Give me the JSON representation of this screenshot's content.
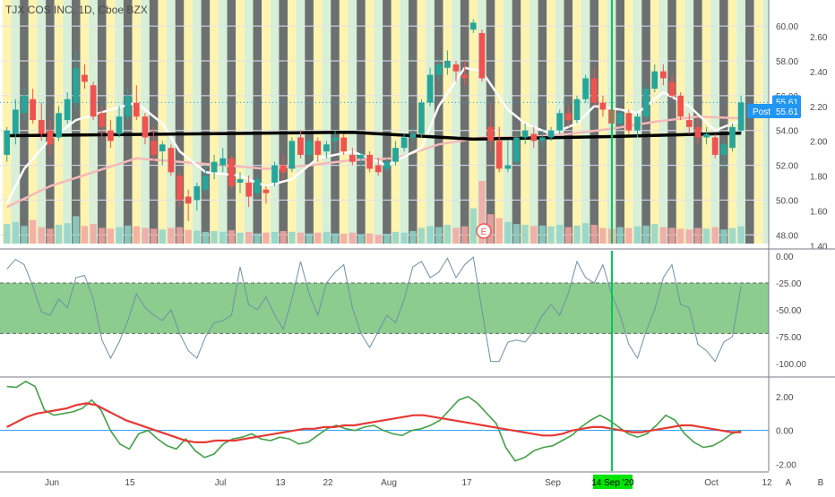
{
  "header": {
    "title": "TJX COS INC, 1D, Cboe BZX"
  },
  "price_tags": {
    "current": "55.61",
    "post_label": "Post",
    "post": "55.61"
  },
  "colors": {
    "up": "#26a69a",
    "down": "#ef5350",
    "bg_yellow": "#fff3b0",
    "bg_green": "#d7f0d7",
    "bg_gray": "#5d6062",
    "ma_long": "#000000",
    "ma_short": "#ffffff",
    "ma_pink": "#f4b9b9",
    "osc_fill": "#66bb6a",
    "osc_line": "#6f8fa6",
    "macd_fast": "#43a047",
    "macd_slow": "#e53935",
    "crosshair": "#00c853",
    "tag": "#2196f3",
    "date_tag_bg": "#00e600"
  },
  "x_axis": {
    "labels": [
      "Jun",
      "15",
      "Jul",
      "13",
      "22",
      "Aug",
      "17",
      "Sep",
      "Oct",
      "12"
    ],
    "highlight": "14 Sep '20"
  },
  "corner_buttons": {
    "a": "A",
    "b": "B"
  },
  "earnings_marker": "E",
  "chart_data": [
    {
      "type": "candlestick",
      "title": "TJX COS INC, 1D, Cboe BZX",
      "ylim_price": [
        47.5,
        61.5
      ],
      "price_ticks": [
        "60.00",
        "58.00",
        "56.00",
        "54.00",
        "52.00",
        "50.00",
        "48.00"
      ],
      "ratio_ticks": [
        "2.60",
        "2.40",
        "2.20",
        "2.00",
        "1.80",
        "1.60",
        "1.40"
      ],
      "candles": [
        {
          "o": 52.6,
          "h": 54.2,
          "l": 52.2,
          "c": 54.0
        },
        {
          "o": 53.8,
          "h": 55.8,
          "l": 53.2,
          "c": 55.2
        },
        {
          "o": 55.0,
          "h": 56.5,
          "l": 54.6,
          "c": 56.0
        },
        {
          "o": 55.8,
          "h": 56.4,
          "l": 54.4,
          "c": 54.6
        },
        {
          "o": 54.6,
          "h": 55.6,
          "l": 53.4,
          "c": 53.8
        },
        {
          "o": 54.0,
          "h": 54.6,
          "l": 52.6,
          "c": 53.2
        },
        {
          "o": 53.6,
          "h": 55.4,
          "l": 53.4,
          "c": 55.0
        },
        {
          "o": 54.6,
          "h": 56.2,
          "l": 54.4,
          "c": 55.8
        },
        {
          "o": 55.6,
          "h": 58.6,
          "l": 55.2,
          "c": 57.6
        },
        {
          "o": 57.2,
          "h": 57.8,
          "l": 56.4,
          "c": 56.8
        },
        {
          "o": 56.6,
          "h": 56.8,
          "l": 54.6,
          "c": 54.8
        },
        {
          "o": 55.0,
          "h": 55.4,
          "l": 53.6,
          "c": 54.2
        },
        {
          "o": 54.0,
          "h": 54.6,
          "l": 53.0,
          "c": 53.4
        },
        {
          "o": 53.8,
          "h": 55.4,
          "l": 53.6,
          "c": 54.8
        },
        {
          "o": 54.8,
          "h": 56.4,
          "l": 54.6,
          "c": 56.0
        },
        {
          "o": 55.6,
          "h": 56.6,
          "l": 54.6,
          "c": 54.8
        },
        {
          "o": 54.8,
          "h": 55.0,
          "l": 53.2,
          "c": 53.6
        },
        {
          "o": 53.4,
          "h": 54.2,
          "l": 52.2,
          "c": 52.6
        },
        {
          "o": 52.8,
          "h": 53.4,
          "l": 52.0,
          "c": 53.2
        },
        {
          "o": 53.0,
          "h": 53.2,
          "l": 51.4,
          "c": 51.6
        },
        {
          "o": 51.4,
          "h": 51.6,
          "l": 49.6,
          "c": 50.0
        },
        {
          "o": 50.2,
          "h": 50.6,
          "l": 48.8,
          "c": 49.8
        },
        {
          "o": 50.0,
          "h": 51.0,
          "l": 49.4,
          "c": 50.8
        },
        {
          "o": 50.6,
          "h": 52.0,
          "l": 50.4,
          "c": 51.4
        },
        {
          "o": 51.6,
          "h": 52.6,
          "l": 51.2,
          "c": 52.2
        },
        {
          "o": 52.0,
          "h": 53.0,
          "l": 51.6,
          "c": 52.4
        },
        {
          "o": 52.4,
          "h": 52.6,
          "l": 50.6,
          "c": 50.8
        },
        {
          "o": 51.0,
          "h": 51.6,
          "l": 50.4,
          "c": 51.2
        },
        {
          "o": 51.0,
          "h": 51.4,
          "l": 49.6,
          "c": 50.2
        },
        {
          "o": 50.4,
          "h": 51.4,
          "l": 50.2,
          "c": 51.2
        },
        {
          "o": 50.6,
          "h": 50.8,
          "l": 49.8,
          "c": 50.4
        },
        {
          "o": 51.0,
          "h": 52.2,
          "l": 50.8,
          "c": 52.0
        },
        {
          "o": 52.0,
          "h": 52.6,
          "l": 51.2,
          "c": 51.6
        },
        {
          "o": 51.8,
          "h": 53.6,
          "l": 51.6,
          "c": 53.4
        },
        {
          "o": 53.6,
          "h": 54.0,
          "l": 52.4,
          "c": 52.6
        },
        {
          "o": 52.6,
          "h": 53.6,
          "l": 52.2,
          "c": 53.4
        },
        {
          "o": 53.4,
          "h": 53.6,
          "l": 52.2,
          "c": 52.6
        },
        {
          "o": 52.8,
          "h": 53.4,
          "l": 52.4,
          "c": 53.2
        },
        {
          "o": 53.4,
          "h": 54.0,
          "l": 52.8,
          "c": 53.6
        },
        {
          "o": 53.6,
          "h": 53.8,
          "l": 52.6,
          "c": 52.8
        },
        {
          "o": 52.6,
          "h": 53.0,
          "l": 52.0,
          "c": 52.2
        },
        {
          "o": 52.4,
          "h": 52.8,
          "l": 51.8,
          "c": 52.6
        },
        {
          "o": 52.6,
          "h": 52.8,
          "l": 51.6,
          "c": 51.8
        },
        {
          "o": 52.0,
          "h": 52.4,
          "l": 51.4,
          "c": 51.6
        },
        {
          "o": 51.8,
          "h": 52.4,
          "l": 51.6,
          "c": 52.2
        },
        {
          "o": 52.2,
          "h": 53.4,
          "l": 52.0,
          "c": 53.0
        },
        {
          "o": 53.0,
          "h": 53.8,
          "l": 52.8,
          "c": 53.6
        },
        {
          "o": 53.6,
          "h": 54.2,
          "l": 53.4,
          "c": 53.8
        },
        {
          "o": 53.8,
          "h": 55.8,
          "l": 53.6,
          "c": 55.6
        },
        {
          "o": 55.6,
          "h": 57.6,
          "l": 55.4,
          "c": 57.2
        },
        {
          "o": 57.2,
          "h": 58.2,
          "l": 56.8,
          "c": 57.8
        },
        {
          "o": 57.6,
          "h": 58.6,
          "l": 57.2,
          "c": 58.0
        },
        {
          "o": 57.8,
          "h": 58.0,
          "l": 56.8,
          "c": 57.4
        },
        {
          "o": 57.2,
          "h": 58.0,
          "l": 56.6,
          "c": 57.0
        },
        {
          "o": 59.8,
          "h": 60.4,
          "l": 59.6,
          "c": 60.2
        },
        {
          "o": 59.6,
          "h": 59.8,
          "l": 56.8,
          "c": 57.0
        },
        {
          "o": 54.2,
          "h": 55.6,
          "l": 52.8,
          "c": 53.4
        },
        {
          "o": 53.4,
          "h": 54.2,
          "l": 51.6,
          "c": 51.8
        },
        {
          "o": 51.8,
          "h": 53.4,
          "l": 51.6,
          "c": 52.0
        },
        {
          "o": 52.2,
          "h": 53.8,
          "l": 52.0,
          "c": 53.6
        },
        {
          "o": 53.6,
          "h": 54.4,
          "l": 53.2,
          "c": 54.0
        },
        {
          "o": 53.8,
          "h": 54.2,
          "l": 53.0,
          "c": 53.4
        },
        {
          "o": 53.4,
          "h": 54.0,
          "l": 53.0,
          "c": 53.6
        },
        {
          "o": 53.6,
          "h": 54.2,
          "l": 53.4,
          "c": 54.0
        },
        {
          "o": 54.0,
          "h": 55.2,
          "l": 53.8,
          "c": 55.0
        },
        {
          "o": 55.0,
          "h": 55.4,
          "l": 54.2,
          "c": 54.6
        },
        {
          "o": 54.6,
          "h": 56.0,
          "l": 54.4,
          "c": 55.8
        },
        {
          "o": 55.8,
          "h": 57.2,
          "l": 55.6,
          "c": 57.0
        },
        {
          "o": 57.0,
          "h": 57.6,
          "l": 55.4,
          "c": 55.6
        },
        {
          "o": 55.6,
          "h": 56.0,
          "l": 54.8,
          "c": 55.2
        },
        {
          "o": 55.2,
          "h": 55.6,
          "l": 54.0,
          "c": 54.4
        },
        {
          "o": 54.4,
          "h": 55.2,
          "l": 54.2,
          "c": 55.0
        },
        {
          "o": 55.0,
          "h": 55.2,
          "l": 53.8,
          "c": 54.0
        },
        {
          "o": 54.0,
          "h": 55.0,
          "l": 53.6,
          "c": 54.8
        },
        {
          "o": 54.8,
          "h": 56.6,
          "l": 54.6,
          "c": 56.4
        },
        {
          "o": 56.4,
          "h": 57.8,
          "l": 56.2,
          "c": 57.4
        },
        {
          "o": 57.4,
          "h": 57.8,
          "l": 56.6,
          "c": 57.0
        },
        {
          "o": 56.8,
          "h": 57.2,
          "l": 55.8,
          "c": 56.0
        },
        {
          "o": 56.0,
          "h": 56.2,
          "l": 54.6,
          "c": 54.8
        },
        {
          "o": 54.6,
          "h": 55.0,
          "l": 53.8,
          "c": 54.2
        },
        {
          "o": 54.2,
          "h": 54.8,
          "l": 53.2,
          "c": 53.6
        },
        {
          "o": 53.6,
          "h": 54.2,
          "l": 53.2,
          "c": 53.8
        },
        {
          "o": 53.6,
          "h": 53.8,
          "l": 52.4,
          "c": 52.6
        },
        {
          "o": 52.6,
          "h": 53.4,
          "l": 51.8,
          "c": 53.2
        },
        {
          "o": 53.0,
          "h": 54.4,
          "l": 52.8,
          "c": 54.2
        },
        {
          "o": 54.0,
          "h": 56.0,
          "l": 53.8,
          "c": 55.61
        }
      ],
      "volume": [
        50,
        55,
        45,
        60,
        42,
        38,
        48,
        52,
        70,
        45,
        50,
        40,
        38,
        42,
        46,
        44,
        40,
        38,
        36,
        40,
        42,
        35,
        33,
        30,
        32,
        30,
        34,
        28,
        30,
        26,
        28,
        30,
        32,
        30,
        28,
        26,
        28,
        30,
        26,
        25,
        28,
        24,
        26,
        22,
        25,
        30,
        28,
        32,
        40,
        45,
        42,
        48,
        40,
        44,
        90,
        160,
        75,
        65,
        55,
        50,
        48,
        45,
        46,
        44,
        48,
        42,
        46,
        52,
        48,
        40,
        38,
        42,
        40,
        44,
        46,
        50,
        42,
        40,
        38,
        36,
        40,
        38,
        42,
        36,
        40,
        44
      ],
      "ma_black": [
        [
          0,
          53.7
        ],
        [
          20,
          53.8
        ],
        [
          40,
          53.9
        ],
        [
          54,
          53.5
        ],
        [
          70,
          53.65
        ],
        [
          85,
          53.85
        ]
      ],
      "ma_white": [
        [
          0,
          49.8
        ],
        [
          2,
          51.8
        ],
        [
          5,
          53.5
        ],
        [
          8,
          54.6
        ],
        [
          12,
          55.2
        ],
        [
          15,
          55.6
        ],
        [
          18,
          54.4
        ],
        [
          20,
          52.8
        ],
        [
          23,
          51.6
        ],
        [
          27,
          51.4
        ],
        [
          30,
          50.8
        ],
        [
          33,
          51.2
        ],
        [
          36,
          52.4
        ],
        [
          40,
          52.8
        ],
        [
          44,
          52.0
        ],
        [
          48,
          53.0
        ],
        [
          50,
          55.4
        ],
        [
          53,
          57.6
        ],
        [
          55,
          57.4
        ],
        [
          58,
          55.2
        ],
        [
          60,
          54.4
        ],
        [
          63,
          53.8
        ],
        [
          66,
          54.4
        ],
        [
          68,
          55.4
        ],
        [
          71,
          55.2
        ],
        [
          73,
          55.0
        ],
        [
          76,
          56.2
        ],
        [
          79,
          55.4
        ],
        [
          82,
          54.0
        ],
        [
          85,
          54.6
        ]
      ],
      "ma_pink": [
        [
          0,
          49.6
        ],
        [
          5,
          50.8
        ],
        [
          10,
          51.6
        ],
        [
          15,
          52.4
        ],
        [
          20,
          52.2
        ],
        [
          25,
          52.0
        ],
        [
          30,
          51.8
        ],
        [
          35,
          52.0
        ],
        [
          40,
          52.3
        ],
        [
          45,
          52.4
        ],
        [
          50,
          53.2
        ],
        [
          55,
          53.6
        ],
        [
          60,
          53.6
        ],
        [
          65,
          53.8
        ],
        [
          70,
          54.1
        ],
        [
          75,
          54.5
        ],
        [
          80,
          54.8
        ],
        [
          85,
          54.7
        ]
      ],
      "background_pattern": [
        "yellow",
        "green",
        "gray"
      ]
    },
    {
      "type": "line",
      "title": "",
      "ylim": [
        -110,
        5
      ],
      "y_ticks": [
        "0.00",
        "-25.00",
        "-50.00",
        "-75.00",
        "-100.00"
      ],
      "band": [
        -25,
        -72
      ],
      "values": [
        -12,
        -3,
        -8,
        -28,
        -52,
        -55,
        -40,
        -48,
        -20,
        -18,
        -40,
        -78,
        -95,
        -80,
        -60,
        -35,
        -48,
        -55,
        -60,
        -50,
        -72,
        -88,
        -95,
        -75,
        -62,
        -60,
        -55,
        -10,
        -45,
        -50,
        -38,
        -55,
        -68,
        -40,
        -5,
        -35,
        -55,
        -25,
        -15,
        -8,
        -48,
        -72,
        -85,
        -70,
        -55,
        -62,
        -40,
        -10,
        -5,
        -20,
        -15,
        -2,
        -20,
        -8,
        -1,
        -50,
        -98,
        -98,
        -80,
        -78,
        -80,
        -70,
        -55,
        -45,
        -55,
        -35,
        -5,
        -20,
        -25,
        -8,
        -35,
        -55,
        -82,
        -95,
        -70,
        -50,
        -20,
        -8,
        -45,
        -48,
        -82,
        -88,
        -98,
        -80,
        -75,
        -28
      ],
      "series": [
        {
          "name": "",
          "color": "#6f8fa6"
        }
      ]
    },
    {
      "type": "line",
      "title": "",
      "ylim": [
        -2.4,
        3.0
      ],
      "y_ticks": [
        "2.00",
        "0.00",
        "-2.00"
      ],
      "series": [
        {
          "name": "",
          "values": [
            2.6,
            2.55,
            2.9,
            2.6,
            1.2,
            0.9,
            1.0,
            1.1,
            1.3,
            1.8,
            1.2,
            0.0,
            -0.8,
            -1.1,
            -0.2,
            0.0,
            -0.5,
            -0.9,
            -1.1,
            -0.5,
            -1.2,
            -1.6,
            -1.4,
            -0.8,
            -0.5,
            -0.4,
            -0.2,
            -0.5,
            -0.6,
            -0.4,
            -0.5,
            -0.8,
            -0.7,
            -0.3,
            0.1,
            0.3,
            0.1,
            0.0,
            0.2,
            0.3,
            0.0,
            -0.2,
            -0.3,
            0.0,
            0.1,
            0.3,
            0.6,
            1.2,
            1.8,
            2.0,
            1.6,
            1.0,
            0.4,
            -1.0,
            -1.8,
            -1.6,
            -1.2,
            -1.0,
            -0.9,
            -0.6,
            -0.3,
            0.2,
            0.6,
            0.9,
            0.6,
            0.2,
            -0.2,
            -0.4,
            -0.2,
            0.3,
            0.9,
            0.6,
            -0.2,
            -0.7,
            -1.0,
            -0.9,
            -0.6,
            -0.2,
            0.0
          ],
          "color": "#43a047"
        },
        {
          "name": "",
          "values": [
            0.2,
            0.5,
            0.8,
            1.0,
            1.1,
            1.2,
            1.3,
            1.5,
            1.6,
            1.5,
            1.2,
            0.9,
            0.6,
            0.4,
            0.2,
            0.0,
            -0.2,
            -0.4,
            -0.6,
            -0.7,
            -0.7,
            -0.6,
            -0.6,
            -0.6,
            -0.5,
            -0.4,
            -0.3,
            -0.2,
            -0.1,
            0.0,
            0.1,
            0.1,
            0.2,
            0.2,
            0.3,
            0.3,
            0.4,
            0.5,
            0.6,
            0.7,
            0.8,
            0.9,
            0.9,
            0.8,
            0.7,
            0.6,
            0.5,
            0.4,
            0.3,
            0.2,
            0.1,
            0.0,
            -0.1,
            -0.2,
            -0.3,
            -0.3,
            -0.2,
            0.0,
            0.1,
            0.2,
            0.2,
            0.1,
            0.0,
            -0.1,
            -0.1,
            0.0,
            0.1,
            0.2,
            0.3,
            0.3,
            0.2,
            0.1,
            0.0,
            -0.1,
            -0.1
          ],
          "color": "#e53935"
        }
      ]
    }
  ]
}
